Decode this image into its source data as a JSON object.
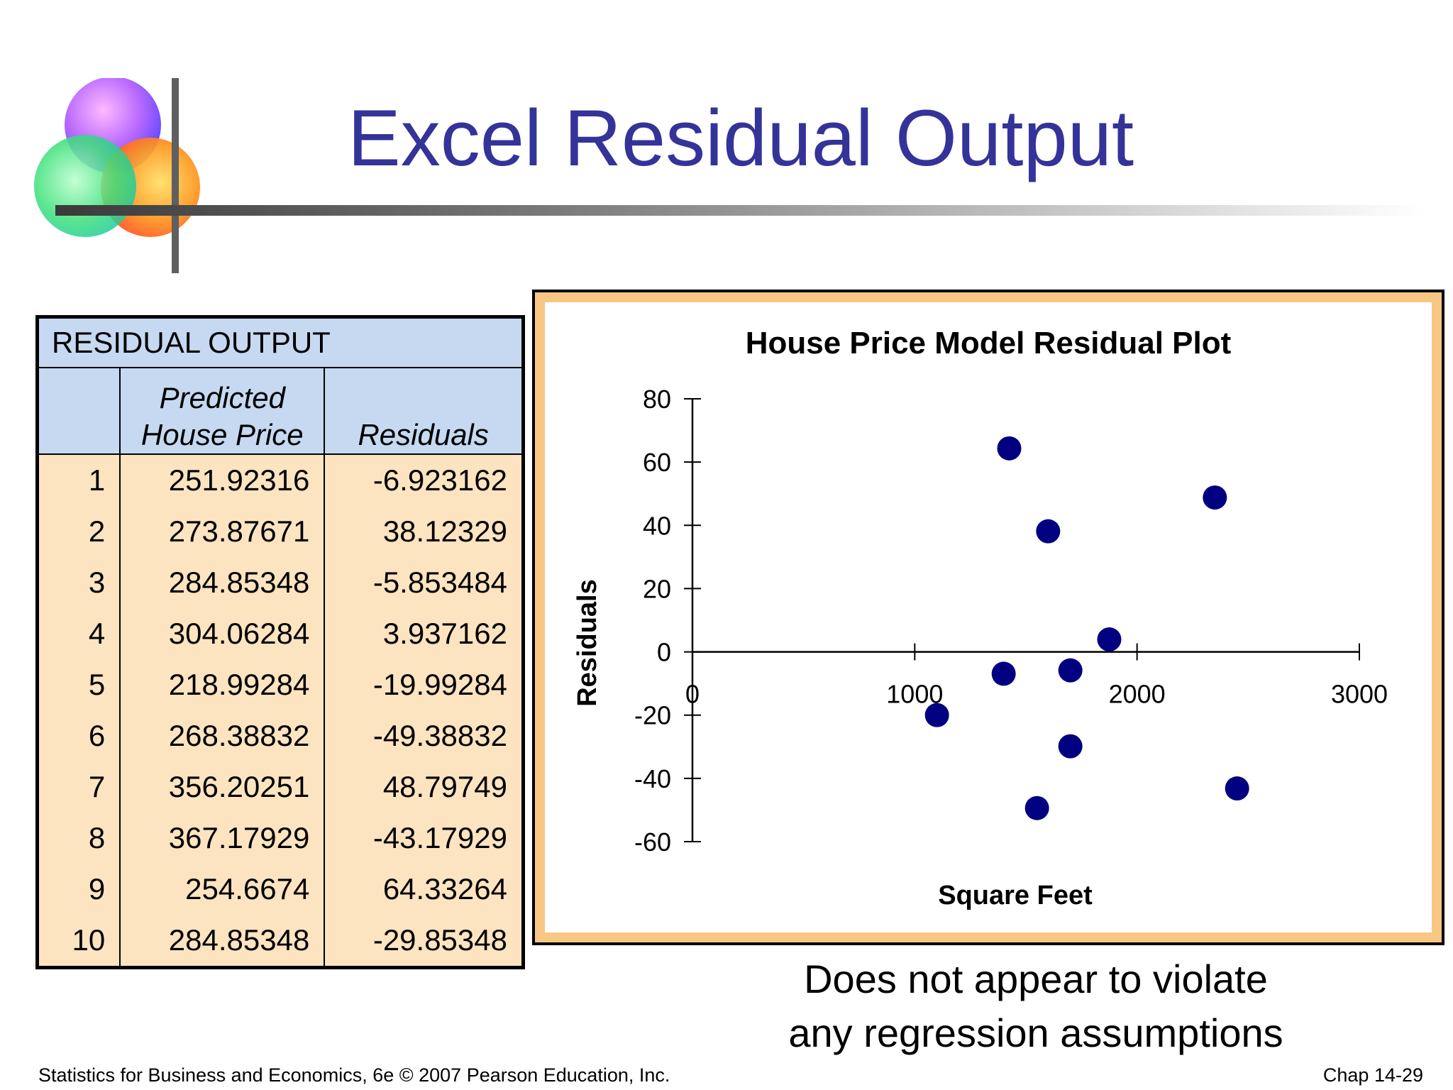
{
  "slide": {
    "title": "Excel Residual Output",
    "caption_line1": "Does not appear to violate",
    "caption_line2": "any regression assumptions",
    "footer_left": "Statistics for Business and Economics, 6e © 2007 Pearson Education, Inc.",
    "footer_right": "Chap 14-29"
  },
  "table": {
    "title": "RESIDUAL OUTPUT",
    "headers": [
      "",
      "Predicted House Price",
      "Residuals"
    ],
    "header_pred_line1": "Predicted",
    "header_pred_line2": "House Price",
    "header_resid": "Residuals",
    "rows": [
      [
        "1",
        "251.92316",
        "-6.923162"
      ],
      [
        "2",
        "273.87671",
        "38.12329"
      ],
      [
        "3",
        "284.85348",
        "-5.853484"
      ],
      [
        "4",
        "304.06284",
        "3.937162"
      ],
      [
        "5",
        "218.99284",
        "-19.99284"
      ],
      [
        "6",
        "268.38832",
        "-49.38832"
      ],
      [
        "7",
        "356.20251",
        "48.79749"
      ],
      [
        "8",
        "367.17929",
        "-43.17929"
      ],
      [
        "9",
        "254.6674",
        "64.33264"
      ],
      [
        "10",
        "284.85348",
        "-29.85348"
      ]
    ]
  },
  "chart_data": {
    "type": "scatter",
    "title": "House Price Model Residual Plot",
    "xlabel": "Square Feet",
    "ylabel": "Residuals",
    "xlim": [
      0,
      3000
    ],
    "ylim": [
      -60,
      80
    ],
    "xticks": [
      0,
      1000,
      2000,
      3000
    ],
    "yticks": [
      80,
      60,
      40,
      20,
      0,
      -20,
      -40,
      -60
    ],
    "grid": false,
    "legend": "none",
    "marker_color": "#000080",
    "points": [
      {
        "x": 1400,
        "y": -6.923162
      },
      {
        "x": 1600,
        "y": 38.12329
      },
      {
        "x": 1700,
        "y": -5.853484
      },
      {
        "x": 1875,
        "y": 3.937162
      },
      {
        "x": 1100,
        "y": -19.99284
      },
      {
        "x": 1550,
        "y": -49.38832
      },
      {
        "x": 2350,
        "y": 48.79749
      },
      {
        "x": 2450,
        "y": -43.17929
      },
      {
        "x": 1425,
        "y": 64.33264
      },
      {
        "x": 1700,
        "y": -29.85348
      }
    ]
  }
}
